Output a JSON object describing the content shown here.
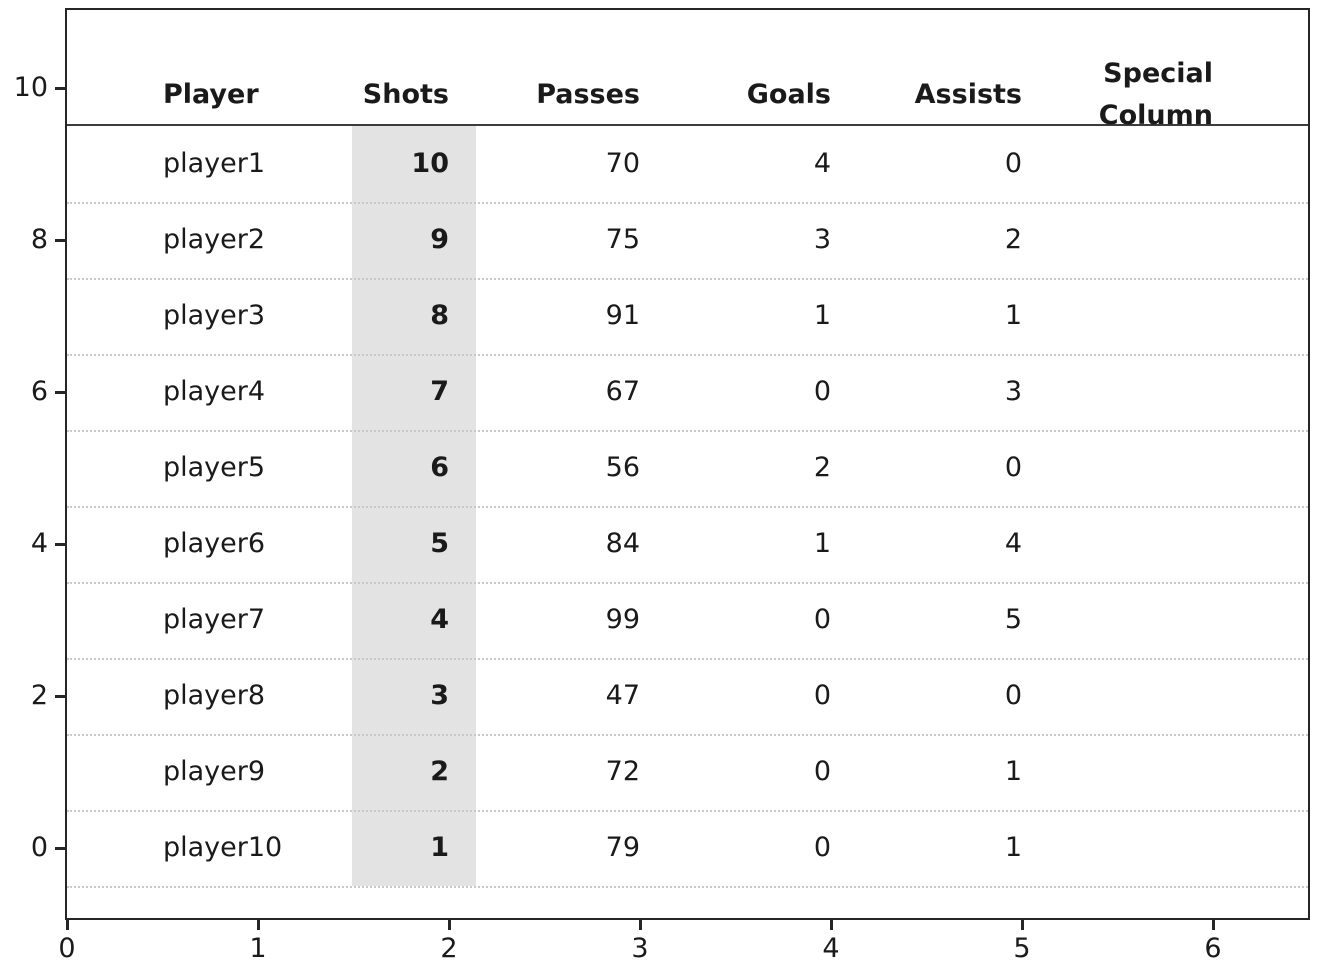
{
  "colors": {
    "background": "#ffffff",
    "text": "#1a1a1a",
    "spine": "#262626",
    "header_rule": "#3c3c3c",
    "grid_dotted": "#c9c9c9",
    "highlight_band": "#e3e3e3"
  },
  "chart_data": {
    "type": "table",
    "title": "",
    "description": "Player statistics table rendered inside a plot axes; the Shots column is highlighted with a light gray band and bold values; dotted horizontal separators between rows; solid rule under the header row.",
    "columns": [
      {
        "id": "player",
        "label": "Player",
        "align": "left",
        "bold_values": false,
        "highlighted": false
      },
      {
        "id": "shots",
        "label": "Shots",
        "align": "right",
        "bold_values": true,
        "highlighted": true
      },
      {
        "id": "passes",
        "label": "Passes",
        "align": "right",
        "bold_values": false,
        "highlighted": false
      },
      {
        "id": "goals",
        "label": "Goals",
        "align": "right",
        "bold_values": false,
        "highlighted": false
      },
      {
        "id": "assists",
        "label": "Assists",
        "align": "right",
        "bold_values": false,
        "highlighted": false
      },
      {
        "id": "special",
        "label": "Special Column",
        "label_lines": [
          "Special",
          "Column"
        ],
        "align": "right",
        "bold_values": false,
        "highlighted": false
      }
    ],
    "rows": [
      {
        "player": "player1",
        "shots": 10,
        "passes": 70,
        "goals": 4,
        "assists": 0,
        "special": ""
      },
      {
        "player": "player2",
        "shots": 9,
        "passes": 75,
        "goals": 3,
        "assists": 2,
        "special": ""
      },
      {
        "player": "player3",
        "shots": 8,
        "passes": 91,
        "goals": 1,
        "assists": 1,
        "special": ""
      },
      {
        "player": "player4",
        "shots": 7,
        "passes": 67,
        "goals": 0,
        "assists": 3,
        "special": ""
      },
      {
        "player": "player5",
        "shots": 6,
        "passes": 56,
        "goals": 2,
        "assists": 0,
        "special": ""
      },
      {
        "player": "player6",
        "shots": 5,
        "passes": 84,
        "goals": 1,
        "assists": 4,
        "special": ""
      },
      {
        "player": "player7",
        "shots": 4,
        "passes": 99,
        "goals": 0,
        "assists": 5,
        "special": ""
      },
      {
        "player": "player8",
        "shots": 3,
        "passes": 47,
        "goals": 0,
        "assists": 0,
        "special": ""
      },
      {
        "player": "player9",
        "shots": 2,
        "passes": 72,
        "goals": 0,
        "assists": 1,
        "special": ""
      },
      {
        "player": "player10",
        "shots": 1,
        "passes": 79,
        "goals": 0,
        "assists": 1,
        "special": ""
      }
    ],
    "x_axis": {
      "tick_labels": [
        "0",
        "1",
        "2",
        "3",
        "4",
        "5",
        "6"
      ],
      "range": [
        0,
        6.5
      ],
      "ticks_out": true
    },
    "y_axis": {
      "tick_labels": [
        "10",
        "8",
        "6",
        "4",
        "2",
        "0"
      ],
      "range": [
        -1,
        11
      ],
      "ticks_out": true
    },
    "grid": "dotted horizontal lines at row boundaries",
    "legend": null
  }
}
